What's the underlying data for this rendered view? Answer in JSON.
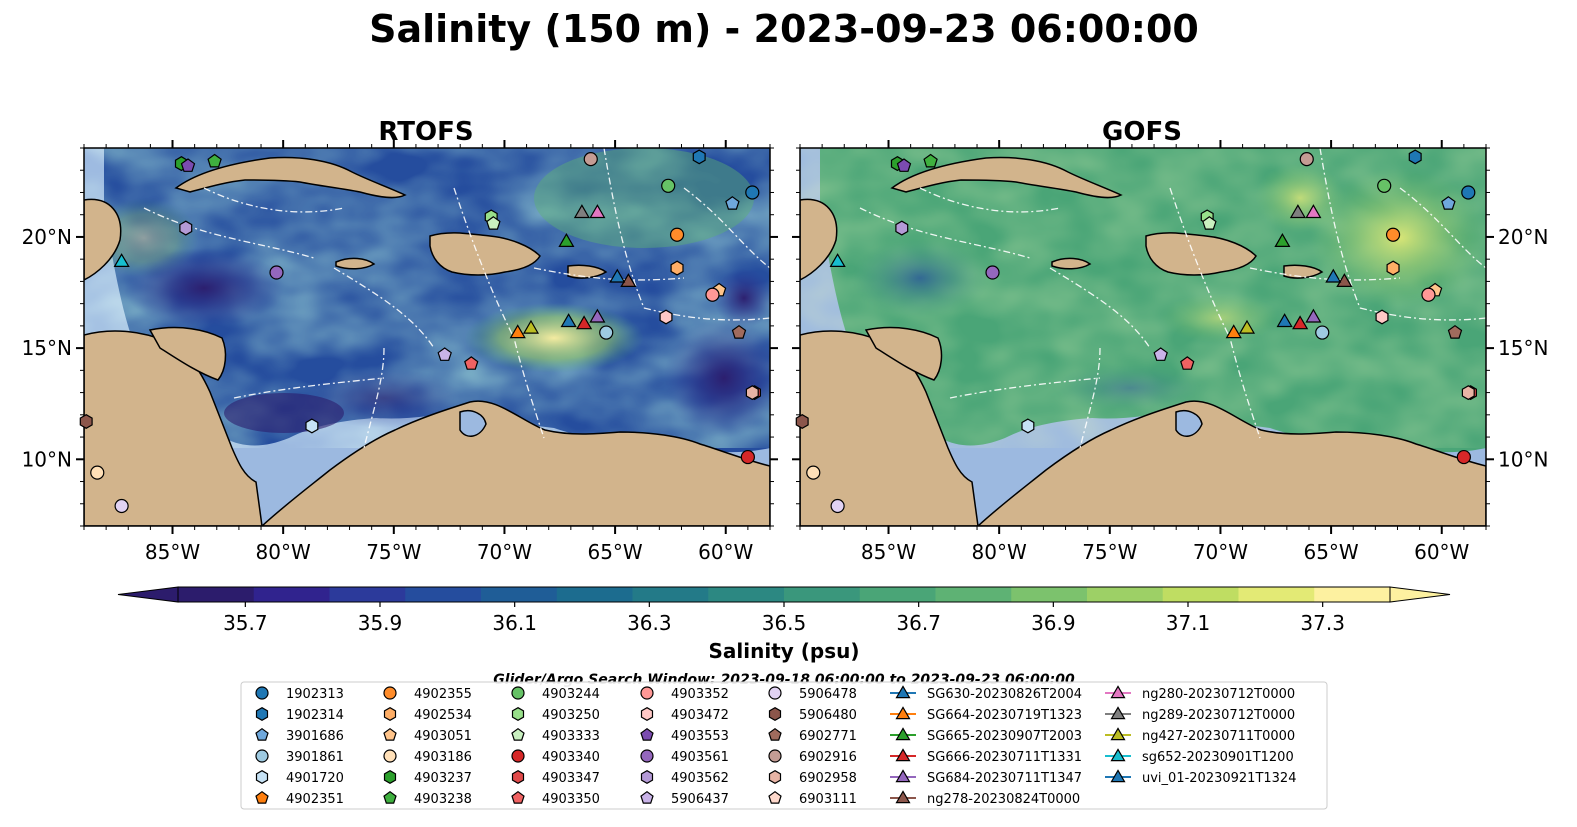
{
  "colors": {
    "land": "#d2b48c",
    "shelf": "#9cb9e0",
    "deep": "#2a1b6b",
    "coast": "#000000",
    "eez": "#ffffff",
    "salinity_scale": [
      "#2c1c6c",
      "#30238e",
      "#2c3a9b",
      "#254d9e",
      "#1f5d97",
      "#1c6c8f",
      "#237a88",
      "#2c8882",
      "#3a977c",
      "#4aa577",
      "#5eb274",
      "#7cc26d",
      "#9dd066",
      "#bfdd62",
      "#e3ea75",
      "#fdf1a0"
    ]
  },
  "chart_data": {
    "type": "contour-map",
    "title": "Salinity (150 m) - 2023-09-23 06:00:00",
    "panels": [
      {
        "id": "rtofs",
        "title": "RTOFS"
      },
      {
        "id": "gofs",
        "title": "GOFS"
      }
    ],
    "lon_range": [
      -89,
      -58
    ],
    "lat_range": [
      7,
      24
    ],
    "x_ticks": [
      {
        "value": -85,
        "label": "85°W"
      },
      {
        "value": -80,
        "label": "80°W"
      },
      {
        "value": -75,
        "label": "75°W"
      },
      {
        "value": -70,
        "label": "70°W"
      },
      {
        "value": -65,
        "label": "65°W"
      },
      {
        "value": -60,
        "label": "60°W"
      }
    ],
    "y_ticks": [
      {
        "value": 20,
        "label": "20°N"
      },
      {
        "value": 15,
        "label": "15°N"
      },
      {
        "value": 10,
        "label": "10°N"
      }
    ],
    "colorbar": {
      "min": 35.6,
      "max": 37.4,
      "step": 0.1,
      "extend": "both",
      "tick_values": [
        35.7,
        35.9,
        36.1,
        36.3,
        36.5,
        36.7,
        36.9,
        37.1,
        37.3
      ],
      "tick_labels": [
        "35.7",
        "35.9",
        "36.1",
        "36.3",
        "36.5",
        "36.7",
        "36.9",
        "37.1",
        "37.3"
      ],
      "label": "Salinity (psu)"
    },
    "search_window": "Glider/Argo Search Window: 2023-09-18 06:00:00 to 2023-09-23 06:00:00",
    "legend": {
      "placement": "bottom",
      "columns": [
        [
          {
            "label": "1902313",
            "marker": "circle",
            "color": "#1f77b4"
          },
          {
            "label": "1902314",
            "marker": "hexagon",
            "color": "#1f77b4"
          },
          {
            "label": "3901686",
            "marker": "pentagon",
            "color": "#6fa8dc"
          },
          {
            "label": "3901861",
            "marker": "circle",
            "color": "#9ecae1"
          },
          {
            "label": "4901720",
            "marker": "hexagon",
            "color": "#c6e2f5"
          },
          {
            "label": "4902351",
            "marker": "pentagon",
            "color": "#ff7f0e"
          }
        ],
        [
          {
            "label": "4902355",
            "marker": "circle",
            "color": "#ff8c2a"
          },
          {
            "label": "4902534",
            "marker": "hexagon",
            "color": "#ffae66"
          },
          {
            "label": "4903051",
            "marker": "pentagon",
            "color": "#ffc48a"
          },
          {
            "label": "4903186",
            "marker": "circle",
            "color": "#ffe0b8"
          },
          {
            "label": "4903237",
            "marker": "hexagon",
            "color": "#2ca02c"
          },
          {
            "label": "4903238",
            "marker": "pentagon",
            "color": "#3fb03f"
          }
        ],
        [
          {
            "label": "4903244",
            "marker": "circle",
            "color": "#66c266"
          },
          {
            "label": "4903250",
            "marker": "hexagon",
            "color": "#98df8a"
          },
          {
            "label": "4903333",
            "marker": "pentagon",
            "color": "#c9f0c0"
          },
          {
            "label": "4903340",
            "marker": "circle",
            "color": "#d62728"
          },
          {
            "label": "4903347",
            "marker": "hexagon",
            "color": "#e04a4a"
          },
          {
            "label": "4903350",
            "marker": "pentagon",
            "color": "#f06262"
          }
        ],
        [
          {
            "label": "4903352",
            "marker": "circle",
            "color": "#ff9896"
          },
          {
            "label": "4903472",
            "marker": "hexagon",
            "color": "#ffc8c6"
          },
          {
            "label": "4903553",
            "marker": "pentagon",
            "color": "#7b4bb0"
          },
          {
            "label": "4903561",
            "marker": "circle",
            "color": "#9467bd"
          },
          {
            "label": "4903562",
            "marker": "hexagon",
            "color": "#b49ad6"
          },
          {
            "label": "5906437",
            "marker": "pentagon",
            "color": "#c9b3e8"
          }
        ],
        [
          {
            "label": "5906478",
            "marker": "circle",
            "color": "#e1d2f3"
          },
          {
            "label": "5906480",
            "marker": "hexagon",
            "color": "#8c564b"
          },
          {
            "label": "6902771",
            "marker": "pentagon",
            "color": "#a06b5d"
          },
          {
            "label": "6902916",
            "marker": "circle",
            "color": "#c49c94"
          },
          {
            "label": "6902958",
            "marker": "hexagon",
            "color": "#e8b4a5"
          },
          {
            "label": "6903111",
            "marker": "pentagon",
            "color": "#ffd9cc"
          }
        ],
        [
          {
            "label": "SG630-20230826T2004",
            "marker": "triangle",
            "color": "#1f77b4",
            "line": true
          },
          {
            "label": "SG664-20230719T1323",
            "marker": "triangle",
            "color": "#ff7f0e",
            "line": true
          },
          {
            "label": "SG665-20230907T2003",
            "marker": "triangle",
            "color": "#2ca02c",
            "line": true
          },
          {
            "label": "SG666-20230711T1331",
            "marker": "triangle",
            "color": "#d62728",
            "line": true
          },
          {
            "label": "SG684-20230711T1347",
            "marker": "triangle",
            "color": "#9467bd",
            "line": true
          },
          {
            "label": "ng278-20230824T0000",
            "marker": "triangle",
            "color": "#8c564b",
            "line": true
          }
        ],
        [
          {
            "label": "ng280-20230712T0000",
            "marker": "triangle",
            "color": "#e377c2",
            "line": true
          },
          {
            "label": "ng289-20230712T0000",
            "marker": "triangle",
            "color": "#7f7f7f",
            "line": true
          },
          {
            "label": "ng427-20230711T0000",
            "marker": "triangle",
            "color": "#bcbd22",
            "line": true
          },
          {
            "label": "sg652-20230901T1200",
            "marker": "triangle",
            "color": "#17becf",
            "line": true
          },
          {
            "label": "uvi_01-20230921T1324",
            "marker": "triangle",
            "color": "#1f77b4",
            "line": true
          }
        ]
      ]
    },
    "observations": [
      {
        "label": "1902313",
        "lon": -58.8,
        "lat": 22.0
      },
      {
        "label": "1902314",
        "lon": -61.2,
        "lat": 23.6
      },
      {
        "label": "3901686",
        "lon": -59.7,
        "lat": 21.5
      },
      {
        "label": "3901861",
        "lon": -65.4,
        "lat": 15.7
      },
      {
        "label": "4901720",
        "lon": -78.7,
        "lat": 11.5
      },
      {
        "label": "4902355",
        "lon": -62.2,
        "lat": 20.1
      },
      {
        "label": "4902534",
        "lon": -62.2,
        "lat": 18.6
      },
      {
        "label": "4903051",
        "lon": -60.3,
        "lat": 17.6
      },
      {
        "label": "4903186",
        "lon": -88.4,
        "lat": 9.4
      },
      {
        "label": "4903237",
        "lon": -84.6,
        "lat": 23.3
      },
      {
        "label": "4903238",
        "lon": -83.1,
        "lat": 23.4
      },
      {
        "label": "4903244",
        "lon": -62.6,
        "lat": 22.3
      },
      {
        "label": "4903250",
        "lon": -70.6,
        "lat": 20.9
      },
      {
        "label": "4903333",
        "lon": -70.5,
        "lat": 20.6
      },
      {
        "label": "4903340",
        "lon": -59.0,
        "lat": 10.1
      },
      {
        "label": "4903347",
        "lon": -58.7,
        "lat": 13.0
      },
      {
        "label": "4903350",
        "lon": -71.5,
        "lat": 14.3
      },
      {
        "label": "4903352",
        "lon": -60.6,
        "lat": 17.4
      },
      {
        "label": "4903472",
        "lon": -62.7,
        "lat": 16.4
      },
      {
        "label": "4903553",
        "lon": -84.3,
        "lat": 23.2
      },
      {
        "label": "4903561",
        "lon": -80.3,
        "lat": 18.4
      },
      {
        "label": "4903562",
        "lon": -84.4,
        "lat": 20.4
      },
      {
        "label": "5906437",
        "lon": -72.7,
        "lat": 14.7
      },
      {
        "label": "5906478",
        "lon": -87.3,
        "lat": 7.9
      },
      {
        "label": "5906480",
        "lon": -88.9,
        "lat": 11.7
      },
      {
        "label": "6902771",
        "lon": -59.4,
        "lat": 15.7
      },
      {
        "label": "6902916",
        "lon": -66.1,
        "lat": 23.5
      },
      {
        "label": "6902958",
        "lon": -58.8,
        "lat": 13.0
      },
      {
        "label": "SG630-20230826T2004",
        "lon": -67.1,
        "lat": 16.2
      },
      {
        "label": "SG664-20230719T1323",
        "lon": -69.4,
        "lat": 15.7
      },
      {
        "label": "SG665-20230907T2003",
        "lon": -67.2,
        "lat": 19.8
      },
      {
        "label": "SG666-20230711T1331",
        "lon": -66.4,
        "lat": 16.1
      },
      {
        "label": "SG684-20230711T1347",
        "lon": -65.8,
        "lat": 16.4
      },
      {
        "label": "ng278-20230824T0000",
        "lon": -64.4,
        "lat": 18.0
      },
      {
        "label": "ng280-20230712T0000",
        "lon": -65.8,
        "lat": 21.1
      },
      {
        "label": "ng289-20230712T0000",
        "lon": -66.5,
        "lat": 21.1
      },
      {
        "label": "ng427-20230711T0000",
        "lon": -68.8,
        "lat": 15.9
      },
      {
        "label": "sg652-20230901T1200",
        "lon": -87.3,
        "lat": 18.9
      },
      {
        "label": "uvi_01-20230921T1324",
        "lon": -64.9,
        "lat": 18.2
      }
    ]
  }
}
